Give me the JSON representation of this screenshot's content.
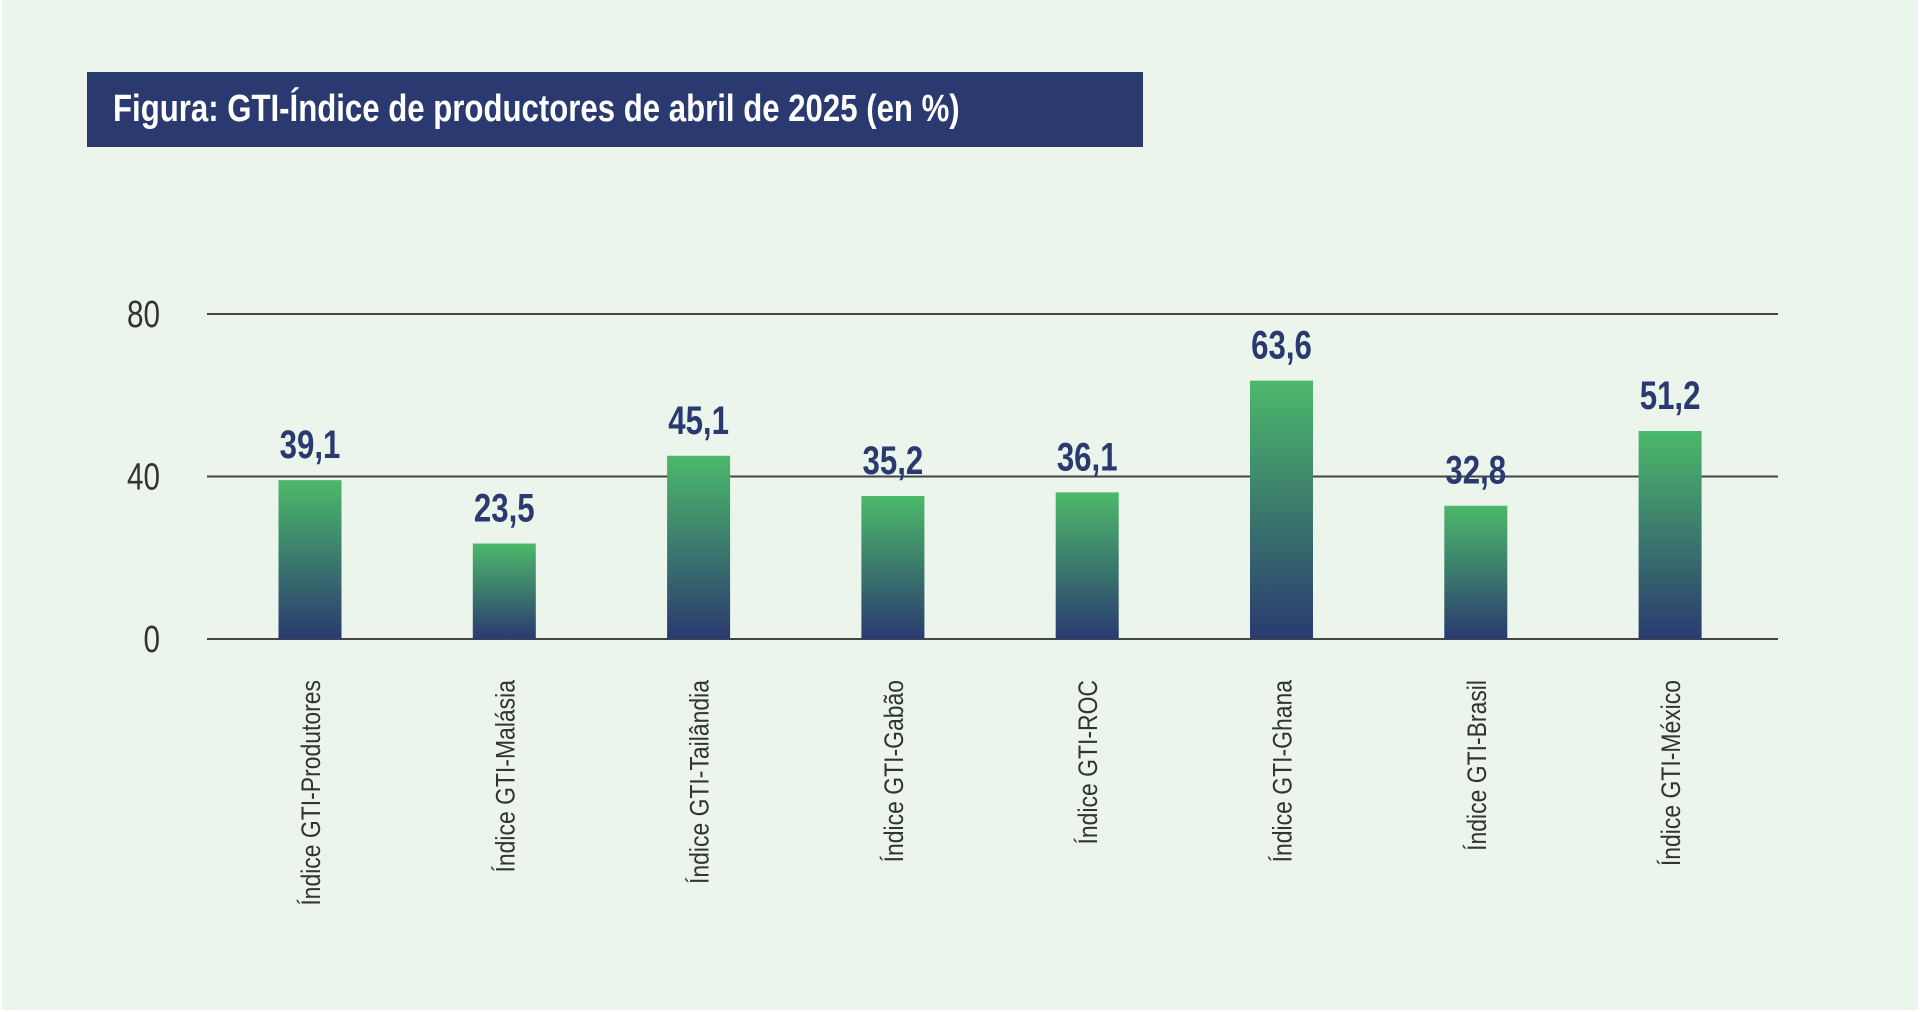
{
  "title": "Figura: GTI-Índice de productores de abril de 2025 (en %)",
  "colors": {
    "background": "#ebf5eb",
    "title_bg": "#2a3a70",
    "bar_top": "#4cb96a",
    "bar_bottom": "#2a3a70",
    "value_label": "#2a3a70",
    "grid": "#444444"
  },
  "chart_data": {
    "type": "bar",
    "title": "Figura: GTI-Índice de productores de abril de 2025 (en %)",
    "categories": [
      "Índice GTI-Produtores",
      "Índice GTI-Malásia",
      "Índice GTI-Tailândia",
      "Índice GTI-Gabão",
      "Índice GTI-ROC",
      "Índice GTI-Ghana",
      "Índice GTI-Brasil",
      "Índice GTI-México"
    ],
    "values": [
      39.1,
      23.5,
      45.1,
      35.2,
      36.1,
      63.6,
      32.8,
      51.2
    ],
    "value_labels": [
      "39,1",
      "23,5",
      "45,1",
      "35,2",
      "36,1",
      "63,6",
      "32,8",
      "51,2"
    ],
    "yticks": [
      "0",
      "40",
      "80"
    ],
    "ytick_values": [
      0,
      40,
      80
    ],
    "ylim": [
      0,
      80
    ],
    "xlabel": "",
    "ylabel": "",
    "grid": true,
    "legend": false
  }
}
